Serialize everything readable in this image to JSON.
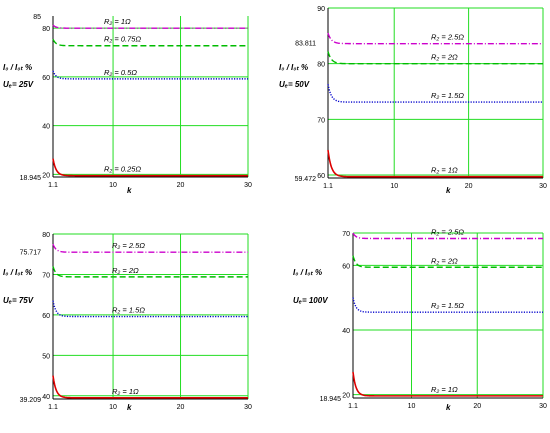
{
  "chart_data": [
    {
      "type": "line",
      "ylabel": "I₀ / I₀ₜ %",
      "voltage_label": "Uₑ= 25V",
      "xlabel": "k",
      "xlim": [
        1.1,
        30
      ],
      "ylim": [
        18.945,
        85
      ],
      "x_ticks": [
        1.1,
        10,
        20,
        30
      ],
      "y_ticks": [
        20,
        40,
        60,
        80
      ],
      "y_ticks_extra": [
        18.945,
        85
      ],
      "grid": true,
      "series": [
        {
          "name": "R₂ = 1Ω",
          "color": "#cc00cc",
          "dash": "6 2 1 2",
          "plateau": 80.0,
          "start": 81.3
        },
        {
          "name": "R₂ = 0.75Ω",
          "color": "#00bb00",
          "dash": "6 3",
          "plateau": 72.8,
          "start": 75.5
        },
        {
          "name": "R₂ = 0.5Ω",
          "color": "#0000cc",
          "dash": "1.2 1.4",
          "plateau": 59.2,
          "start": 62.5
        },
        {
          "name": "R₂ = 0.25Ω",
          "color": "#dd0000",
          "dash": "",
          "plateau": 19.5,
          "start": 26.5
        }
      ]
    },
    {
      "type": "line",
      "ylabel": "I₀ / I₀ₜ %",
      "voltage_label": "Uₑ= 50V",
      "xlabel": "k",
      "xlim": [
        1.1,
        30
      ],
      "ylim": [
        59.472,
        90
      ],
      "x_ticks": [
        1.1,
        10,
        20,
        30
      ],
      "y_ticks": [
        60,
        70,
        80,
        90
      ],
      "y_ticks_extra": [
        59.472,
        83.811
      ],
      "grid": true,
      "series": [
        {
          "name": "R₂ = 2.5Ω",
          "color": "#cc00cc",
          "dash": "6 2 1 2",
          "plateau": 83.6,
          "start": 85.5
        },
        {
          "name": "R₂ = 2Ω",
          "color": "#00bb00",
          "dash": "6 3",
          "plateau": 80.0,
          "start": 82.2
        },
        {
          "name": "R₂ = 1.5Ω",
          "color": "#0000cc",
          "dash": "1.2 1.4",
          "plateau": 73.1,
          "start": 76.3
        },
        {
          "name": "R₂ = 1Ω",
          "color": "#dd0000",
          "dash": "",
          "plateau": 59.7,
          "start": 64.5
        }
      ]
    },
    {
      "type": "line",
      "ylabel": "I₀ / I₀ₜ %",
      "voltage_label": "Uₑ= 75V",
      "xlabel": "k",
      "xlim": [
        1.1,
        30
      ],
      "ylim": [
        39.209,
        80
      ],
      "x_ticks": [
        1.1,
        10,
        20,
        30
      ],
      "y_ticks": [
        40,
        50,
        60,
        70,
        80
      ],
      "y_ticks_extra": [
        39.209,
        75.717
      ],
      "grid": true,
      "series": [
        {
          "name": "R₂ = 2.5Ω",
          "color": "#cc00cc",
          "dash": "6 2 1 2",
          "plateau": 75.5,
          "start": 77.5
        },
        {
          "name": "R₂ = 2Ω",
          "color": "#00bb00",
          "dash": "6 3",
          "plateau": 69.4,
          "start": 72.0
        },
        {
          "name": "R₂ = 1.5Ω",
          "color": "#0000cc",
          "dash": "1.2 1.4",
          "plateau": 59.6,
          "start": 63.5
        },
        {
          "name": "R₂ = 1Ω",
          "color": "#dd0000",
          "dash": "",
          "plateau": 39.5,
          "start": 45.0
        }
      ]
    },
    {
      "type": "line",
      "ylabel": "I₀ / I₀ₜ %",
      "voltage_label": "Uₑ= 100V",
      "xlabel": "k",
      "xlim": [
        1.1,
        30
      ],
      "ylim": [
        18.945,
        70
      ],
      "x_ticks": [
        1.1,
        10,
        20,
        30
      ],
      "y_ticks": [
        20,
        40,
        60,
        70
      ],
      "y_ticks_extra": [
        18.945
      ],
      "grid": true,
      "series": [
        {
          "name": "R₂ = 2.5Ω",
          "color": "#cc00cc",
          "dash": "6 2 1 2",
          "plateau": 68.3,
          "start": 70.0
        },
        {
          "name": "R₂ = 2Ω",
          "color": "#00bb00",
          "dash": "6 3",
          "plateau": 59.4,
          "start": 63.0
        },
        {
          "name": "R₂ = 1.5Ω",
          "color": "#0000cc",
          "dash": "1.2 1.4",
          "plateau": 45.5,
          "start": 50.0
        },
        {
          "name": "R₂ = 1Ω",
          "color": "#dd0000",
          "dash": "",
          "plateau": 19.6,
          "start": 27.0
        }
      ]
    }
  ],
  "colors": {
    "grid": "#22dd22",
    "axis": "#000000",
    "background": "#ffffff"
  }
}
